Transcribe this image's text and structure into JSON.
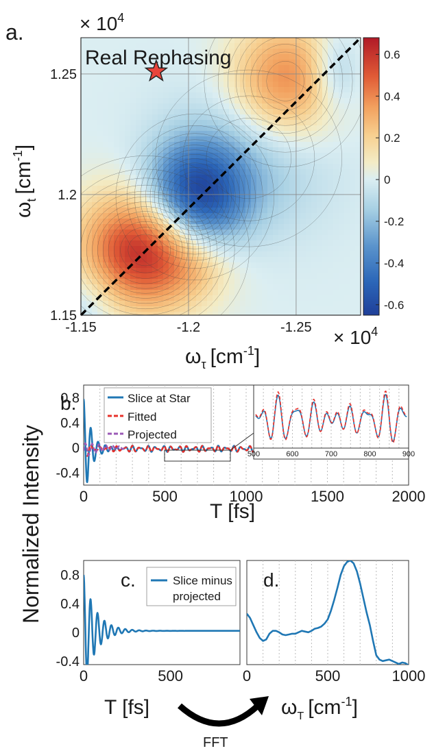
{
  "chart_data": [
    {
      "panel": "a.",
      "type": "heatmap",
      "title": "Real Rephasing",
      "xlabel_main": "ω",
      "xlabel_sub": "τ",
      "xlabel_unit": "[cm",
      "xlabel_exp": "-1",
      "xlabel_close": "]",
      "ylabel_main": "ω",
      "ylabel_sub": "t",
      "ylabel_unit": "[cm",
      "ylabel_exp": "-1",
      "ylabel_close": "]",
      "x_multiplier": "× 10",
      "x_multiplier_exp": "4",
      "y_multiplier": "× 10",
      "y_multiplier_exp": "4",
      "xlim": [
        -1.15,
        -1.28
      ],
      "ylim": [
        1.15,
        1.265
      ],
      "xticks": [
        -1.15,
        -1.2,
        -1.25
      ],
      "xtick_labels": [
        "-1.15",
        "-1.2",
        "-1.25"
      ],
      "yticks": [
        1.15,
        1.2,
        1.25
      ],
      "ytick_labels": [
        "1.15",
        "1.2",
        "1.25"
      ],
      "colorbar": {
        "range": [
          -0.65,
          0.68
        ],
        "ticks": [
          0.6,
          0.4,
          0.2,
          0,
          -0.2,
          -0.4,
          -0.6
        ],
        "tick_labels": [
          "0.6",
          "0.4",
          "0.2",
          "0",
          "-0.2",
          "-0.4",
          "-0.6"
        ]
      },
      "peaks": [
        {
          "x": -1.18,
          "y": 1.177,
          "amp": 0.67,
          "sx": 0.021,
          "sy": 0.017
        },
        {
          "x": -1.203,
          "y": 1.199,
          "amp": -0.64,
          "sx": 0.016,
          "sy": 0.015
        },
        {
          "x": -1.228,
          "y": 1.215,
          "amp": -0.17,
          "sx": 0.026,
          "sy": 0.022
        },
        {
          "x": -1.245,
          "y": 1.247,
          "amp": 0.42,
          "sx": 0.018,
          "sy": 0.017
        },
        {
          "x": -1.268,
          "y": 1.251,
          "amp": -0.2,
          "sx": 0.008,
          "sy": 0.011
        },
        {
          "x": -1.152,
          "y": 1.155,
          "amp": -0.12,
          "sx": 0.012,
          "sy": 0.012
        },
        {
          "x": -1.205,
          "y": 1.167,
          "amp": 0.05,
          "sx": 0.01,
          "sy": 0.006
        }
      ],
      "diagonal": "dashed black",
      "star": {
        "x": -1.185,
        "y": 1.251,
        "color": "#e8453c"
      }
    },
    {
      "panel": "b.",
      "type": "line",
      "xlabel": "T [fs]",
      "ylabel": "Normalized Intensity",
      "xlim": [
        0,
        2000
      ],
      "ylim": [
        -0.6,
        1.0
      ],
      "xticks": [
        0,
        500,
        1000,
        1500,
        2000
      ],
      "xtick_labels": [
        "0",
        "500",
        "1000",
        "1500",
        "2000"
      ],
      "yticks": [
        0.8,
        0.4,
        0,
        -0.4
      ],
      "ytick_labels": [
        "0.8",
        "0.4",
        "0",
        "-0.4"
      ],
      "series": [
        {
          "name": "Slice at Star",
          "color": "#1f77b4",
          "style": "solid"
        },
        {
          "name": "Fitted",
          "color": "#e8302a",
          "style": "dashed"
        },
        {
          "name": "Projected",
          "color": "#9b59b6",
          "style": "dashed"
        }
      ],
      "inset": {
        "xlim": [
          500,
          900
        ],
        "xticks": [
          500,
          600,
          700,
          800,
          900
        ],
        "xtick_labels": [
          "500",
          "600",
          "700",
          "800",
          "900"
        ]
      }
    },
    {
      "panel": "c.",
      "type": "line",
      "xlabel": "T [fs]",
      "ylabel": "Normalized Intensity",
      "xlim": [
        0,
        900
      ],
      "ylim": [
        -0.45,
        1.0
      ],
      "xticks": [
        0,
        500
      ],
      "xtick_labels": [
        "0",
        "500"
      ],
      "yticks": [
        0.8,
        0.4,
        0,
        -0.4
      ],
      "ytick_labels": [
        "0.8",
        "0.4",
        "0",
        "-0.4"
      ],
      "series": [
        {
          "name": "Slice minus projected",
          "color": "#1f77b4"
        }
      ],
      "legend_line1": "Slice minus",
      "legend_line2": "projected"
    },
    {
      "panel": "d.",
      "type": "line",
      "xlabel_main": "ω",
      "xlabel_sub": "T",
      "xlabel_unit": "[cm",
      "xlabel_exp": "-1",
      "xlabel_close": "]",
      "xlim": [
        0,
        1000
      ],
      "ylim": [
        -0.45,
        1.0
      ],
      "xticks": [
        0,
        500,
        1000
      ],
      "xtick_labels": [
        "0",
        "500",
        "1000"
      ],
      "x": [
        0,
        20,
        40,
        60,
        80,
        100,
        120,
        140,
        160,
        180,
        200,
        220,
        240,
        260,
        280,
        300,
        320,
        340,
        360,
        380,
        400,
        420,
        440,
        460,
        480,
        500,
        520,
        540,
        560,
        580,
        600,
        620,
        640,
        660,
        680,
        700,
        720,
        740,
        760,
        780,
        800,
        820,
        840,
        860,
        880,
        900,
        920,
        940,
        960,
        980,
        1000
      ],
      "values": [
        0.26,
        0.2,
        0.1,
        0.0,
        -0.08,
        -0.12,
        -0.1,
        -0.02,
        0.02,
        0.02,
        0.0,
        -0.03,
        -0.04,
        -0.03,
        -0.02,
        -0.02,
        0.0,
        0.02,
        0.01,
        0.0,
        0.02,
        0.05,
        0.06,
        0.08,
        0.12,
        0.18,
        0.3,
        0.45,
        0.62,
        0.8,
        0.92,
        0.98,
        1.0,
        0.96,
        0.85,
        0.68,
        0.48,
        0.28,
        0.1,
        -0.12,
        -0.32,
        -0.38,
        -0.4,
        -0.39,
        -0.38,
        -0.4,
        -0.42,
        -0.44,
        -0.42,
        -0.43,
        -0.46
      ],
      "series": [
        {
          "color": "#1f77b4"
        }
      ]
    }
  ],
  "annotations": {
    "fft_label": "FFT"
  }
}
